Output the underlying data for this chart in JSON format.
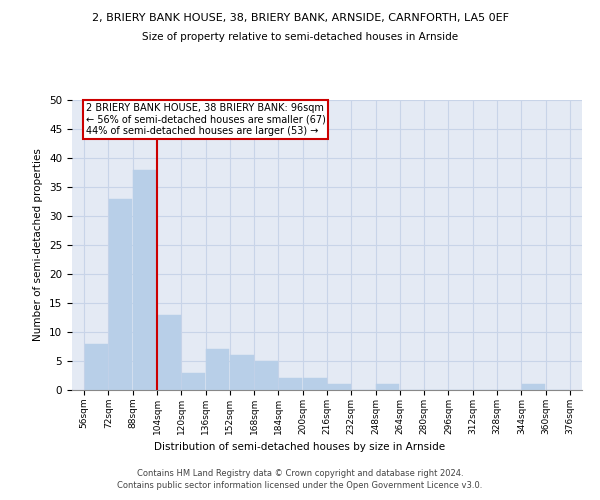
{
  "title_top": "2, BRIERY BANK HOUSE, 38, BRIERY BANK, ARNSIDE, CARNFORTH, LA5 0EF",
  "title_sub": "Size of property relative to semi-detached houses in Arnside",
  "xlabel": "Distribution of semi-detached houses by size in Arnside",
  "ylabel": "Number of semi-detached properties",
  "bins": [
    56,
    72,
    88,
    104,
    120,
    136,
    152,
    168,
    184,
    200,
    216,
    232,
    248,
    264,
    280,
    296,
    312,
    328,
    344,
    360,
    376
  ],
  "counts": [
    8,
    33,
    38,
    13,
    3,
    7,
    6,
    5,
    2,
    2,
    1,
    0,
    1,
    0,
    0,
    0,
    0,
    0,
    1,
    0
  ],
  "property_bin_index": 2,
  "bar_color": "#b8cfe8",
  "bar_edge_color": "#b8cfe8",
  "vline_color": "#cc0000",
  "annotation_text": "2 BRIERY BANK HOUSE, 38 BRIERY BANK: 96sqm\n← 56% of semi-detached houses are smaller (67)\n44% of semi-detached houses are larger (53) →",
  "annotation_box_edgecolor": "#cc0000",
  "ylim": [
    0,
    50
  ],
  "yticks": [
    0,
    5,
    10,
    15,
    20,
    25,
    30,
    35,
    40,
    45,
    50
  ],
  "grid_color": "#c8d4e8",
  "background_color": "#e4eaf4",
  "footer": "Contains HM Land Registry data © Crown copyright and database right 2024.\nContains public sector information licensed under the Open Government Licence v3.0.",
  "tick_labels": [
    "56sqm",
    "72sqm",
    "88sqm",
    "104sqm",
    "120sqm",
    "136sqm",
    "152sqm",
    "168sqm",
    "184sqm",
    "200sqm",
    "216sqm",
    "232sqm",
    "248sqm",
    "264sqm",
    "280sqm",
    "296sqm",
    "312sqm",
    "328sqm",
    "344sqm",
    "360sqm",
    "376sqm"
  ]
}
